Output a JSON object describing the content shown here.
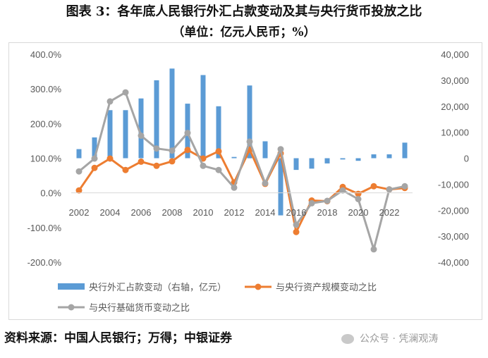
{
  "title": "图表 3：各年底人民银行外汇占款变动及其与央行货币投放之比",
  "subtitle": "（单位：亿元人民币；%）",
  "source": "资料来源：中国人民银行；万得；中银证券",
  "watermark": "公众号 · 凭澜观涛",
  "colors": {
    "bar": "#5b9bd5",
    "line1": "#ed7d31",
    "line2": "#a5a5a5"
  },
  "chart_data": {
    "type": "bar+line",
    "x_ticks": [
      "2002",
      "2004",
      "2006",
      "2008",
      "2010",
      "2012",
      "2014",
      "2016",
      "2018",
      "2020",
      "2022"
    ],
    "left_axis": {
      "ticks": [
        "400.0%",
        "300.0%",
        "200.0%",
        "100.0%",
        "0.0%",
        "-100.0%",
        "-200.0%"
      ],
      "ylim": [
        -200,
        400
      ]
    },
    "right_axis": {
      "ticks": [
        "40,000",
        "30,000",
        "20,000",
        "10,000",
        "0",
        "-10,000",
        "-20,000",
        "-30,000",
        "-40,000"
      ],
      "ylim": [
        -40000,
        40000
      ]
    },
    "x": [
      2002,
      2003,
      2004,
      2005,
      2006,
      2007,
      2008,
      2009,
      2010,
      2011,
      2012,
      2013,
      2014,
      2015,
      2016,
      2017,
      2018,
      2019,
      2020,
      2021,
      2022,
      2023
    ],
    "series": [
      {
        "name": "央行外汇占款变动（右轴，亿元）",
        "axis": "right",
        "kind": "bar",
        "values": [
          3500,
          8000,
          18500,
          18500,
          23000,
          30000,
          34500,
          21000,
          32000,
          20000,
          500,
          28000,
          6500,
          -22000,
          -4500,
          -4000,
          -2000,
          -500,
          -1000,
          1500,
          1500,
          6000
        ]
      },
      {
        "name": "与央行资产规模变动之比",
        "axis": "left",
        "kind": "line",
        "values": [
          7,
          72,
          99,
          66,
          90,
          78,
          91,
          124,
          99,
          120,
          30,
          125,
          26,
          114,
          -113,
          -22,
          -24,
          17,
          -3,
          19,
          10,
          14
        ]
      },
      {
        "name": "与央行基础货币变动之比",
        "axis": "left",
        "kind": "line",
        "values": [
          62,
          99,
          264,
          290,
          165,
          128,
          122,
          173,
          78,
          66,
          15,
          148,
          28,
          126,
          -92,
          -30,
          -23,
          7,
          -18,
          -163,
          10,
          19
        ]
      }
    ],
    "legend_position": "bottom",
    "grid": false
  }
}
